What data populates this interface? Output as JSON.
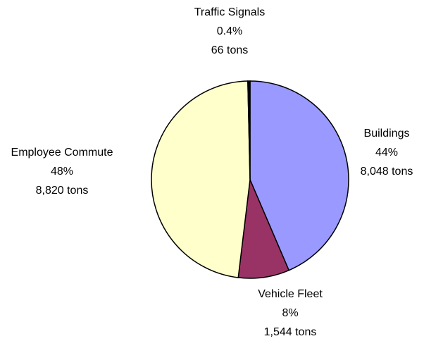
{
  "chart_data": {
    "type": "pie",
    "categories": [
      "Buildings",
      "Vehicle Fleet",
      "Employee Commute",
      "Traffic Signals"
    ],
    "values": [
      8048,
      1544,
      8820,
      66
    ],
    "value_labels": [
      "8,048 tons",
      "1,544 tons",
      "8,820 tons",
      "66 tons"
    ],
    "percent_labels": [
      "44%",
      "8%",
      "48%",
      "0.4%"
    ],
    "colors": [
      "#9999ff",
      "#993366",
      "#ffffcc",
      "#000000"
    ]
  }
}
